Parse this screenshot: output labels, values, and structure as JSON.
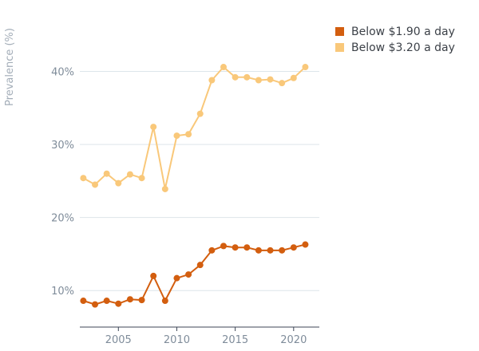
{
  "chart_data": {
    "type": "line",
    "title": "",
    "xlabel": "",
    "ylabel": "Prevalence (%)",
    "x": [
      2002,
      2003,
      2004,
      2005,
      2006,
      2007,
      2008,
      2009,
      2010,
      2011,
      2012,
      2013,
      2014,
      2015,
      2016,
      2017,
      2018,
      2019,
      2020,
      2021
    ],
    "xlim": [
      2001.7,
      2022.2
    ],
    "ylim": [
      5,
      46.5
    ],
    "x_ticks": [
      2005,
      2010,
      2015,
      2020
    ],
    "x_tick_labels": [
      "2005",
      "2010",
      "2015",
      "2020"
    ],
    "y_ticks": [
      10,
      20,
      30,
      40
    ],
    "y_tick_labels": [
      "10%",
      "20%",
      "30%",
      "40%"
    ],
    "grid": "horizontal",
    "legend_position": "top-right",
    "series": [
      {
        "name": "Below $1.90 a day",
        "color": "#d35e0f",
        "values": [
          8.6,
          8.1,
          8.6,
          8.2,
          8.8,
          8.7,
          12.0,
          8.6,
          11.7,
          12.2,
          13.5,
          15.5,
          16.1,
          15.9,
          15.9,
          15.5,
          15.5,
          15.5,
          15.9,
          16.3
        ]
      },
      {
        "name": "Below $3.20 a day",
        "color": "#f9c87a",
        "values": [
          25.4,
          24.5,
          26.0,
          24.7,
          25.9,
          25.4,
          32.4,
          23.9,
          31.2,
          31.4,
          34.2,
          38.8,
          40.6,
          39.2,
          39.2,
          38.8,
          38.9,
          38.4,
          39.1,
          40.6
        ]
      }
    ]
  }
}
